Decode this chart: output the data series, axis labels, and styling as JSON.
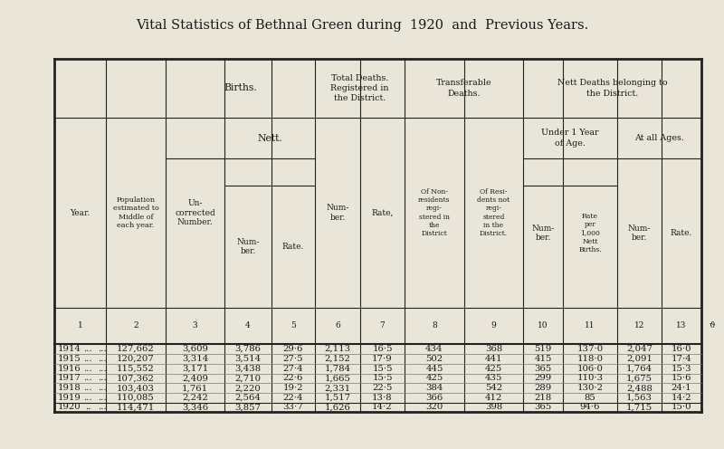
{
  "title": "Vital Statistics of Bethnal Green during  1920  and  Previous Years.",
  "bg_color": "#e9e5d9",
  "text_color": "#1a1a1a",
  "rows_1914_1919": [
    [
      "1914",
      "127,662",
      "3,609",
      "3,786",
      "29·6",
      "2,113",
      "16·5",
      "434",
      "368",
      "519",
      "137·0",
      "2,047",
      "16·0"
    ],
    [
      "1915",
      "120,207",
      "3,314",
      "3,514",
      "27·5",
      "2,152",
      "17·9",
      "502",
      "441",
      "415",
      "118·0",
      "2,091",
      "17·4"
    ],
    [
      "1916",
      "115,552",
      "3,171",
      "3,438",
      "27·4",
      "1,784",
      "15·5",
      "445",
      "425",
      "365",
      "106·0",
      "1,764",
      "15·3"
    ],
    [
      "1917",
      "107,362",
      "2,409",
      "2,710",
      "22·6",
      "1,665",
      "15·5",
      "425",
      "435",
      "299",
      "110·3",
      "1,675",
      "15·6"
    ],
    [
      "1918",
      "103,403",
      "1,761",
      "2,220",
      "19·2",
      "2,331",
      "22·5",
      "384",
      "542",
      "289",
      "130·2",
      "2,488",
      "24·1"
    ],
    [
      "1919",
      "110,085",
      "2,242",
      "2,564",
      "22·4",
      "1,517",
      "13·8",
      "366",
      "412",
      "218",
      "85",
      "1,563",
      "14·2"
    ]
  ],
  "row_1920": [
    "1920",
    "114,471",
    "3,346",
    "3,857",
    "33·7",
    "1,626",
    "14·2",
    "320",
    "398",
    "365",
    "94·6",
    "1,715",
    "15·0"
  ]
}
